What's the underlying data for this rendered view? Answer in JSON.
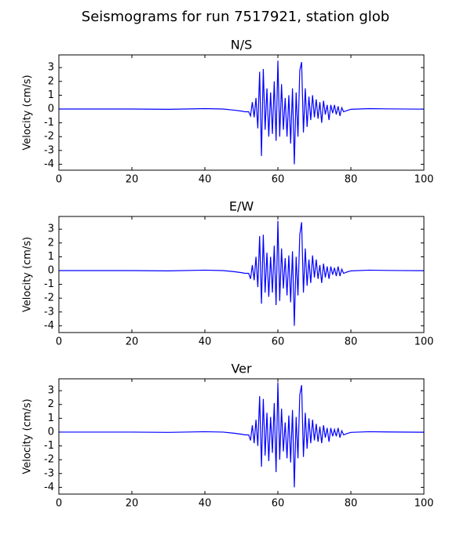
{
  "title": "Seismograms for run 7517921, station glob",
  "chart_data": [
    {
      "type": "line",
      "title": "N/S",
      "ylabel": "Velocity (cm/s)",
      "xlim": [
        0,
        100
      ],
      "ylim": [
        -4.43,
        3.92
      ],
      "xticks": [
        0,
        20,
        40,
        60,
        80,
        100
      ],
      "yticks": [
        -4,
        -3,
        -2,
        -1,
        0,
        1,
        2,
        3
      ],
      "x": [
        0,
        10,
        20,
        30,
        40,
        45,
        48,
        50,
        51,
        52,
        52.5,
        53,
        53.5,
        54,
        54.5,
        55,
        55.5,
        56,
        56.5,
        57,
        57.5,
        58,
        58.5,
        59,
        59.5,
        60,
        60.5,
        61,
        61.5,
        62,
        62.5,
        63,
        63.5,
        64,
        64.5,
        65,
        65.5,
        66,
        66.5,
        67,
        67.5,
        68,
        68.5,
        69,
        69.5,
        70,
        70.5,
        71,
        71.5,
        72,
        72.5,
        73,
        73.5,
        74,
        74.5,
        75,
        75.5,
        76,
        76.5,
        77,
        77.5,
        78,
        79,
        80,
        85,
        90,
        100
      ],
      "series": [
        {
          "name": "N/S",
          "color": "#0000ff",
          "values": [
            0,
            0,
            0,
            -0.02,
            0.03,
            0,
            -0.08,
            -0.15,
            -0.2,
            -0.2,
            -0.5,
            0.5,
            -0.6,
            0.8,
            -1.4,
            2.7,
            -3.4,
            2.9,
            -1.5,
            1.5,
            -2.0,
            1.2,
            -1.8,
            2.0,
            -2.3,
            3.5,
            -2.0,
            1.8,
            -1.5,
            0.8,
            -2.0,
            1.0,
            -2.5,
            1.5,
            -4.0,
            1.2,
            -2.0,
            2.8,
            3.4,
            -1.7,
            1.5,
            -1.3,
            0.9,
            -0.8,
            1.0,
            -0.6,
            0.7,
            -0.7,
            0.5,
            -1.0,
            0.6,
            -0.4,
            0.3,
            -0.8,
            0.3,
            -0.3,
            0.3,
            -0.4,
            0.2,
            -0.5,
            0.1,
            -0.2,
            -0.1,
            -0.02,
            0.03,
            0.01,
            -0.01
          ]
        }
      ]
    },
    {
      "type": "line",
      "title": "E/W",
      "ylabel": "Velocity (cm/s)",
      "xlim": [
        0,
        100
      ],
      "ylim": [
        -4.49,
        3.92
      ],
      "xticks": [
        0,
        20,
        40,
        60,
        80,
        100
      ],
      "yticks": [
        -4,
        -3,
        -2,
        -1,
        0,
        1,
        2,
        3
      ],
      "x": [
        0,
        10,
        20,
        30,
        40,
        45,
        48,
        50,
        51,
        52,
        52.5,
        53,
        53.5,
        54,
        54.5,
        55,
        55.5,
        56,
        56.5,
        57,
        57.5,
        58,
        58.5,
        59,
        59.5,
        60,
        60.5,
        61,
        61.5,
        62,
        62.5,
        63,
        63.5,
        64,
        64.5,
        65,
        65.5,
        66,
        66.5,
        67,
        67.5,
        68,
        68.5,
        69,
        69.5,
        70,
        70.5,
        71,
        71.5,
        72,
        72.5,
        73,
        73.5,
        74,
        74.5,
        75,
        75.5,
        76,
        76.5,
        77,
        77.5,
        78,
        79,
        80,
        85,
        90,
        100
      ],
      "series": [
        {
          "name": "E/W",
          "color": "#0000ff",
          "values": [
            0,
            0,
            0,
            -0.02,
            0.03,
            0,
            -0.08,
            -0.15,
            -0.2,
            -0.2,
            -0.6,
            0.4,
            -0.7,
            1.0,
            -1.2,
            2.5,
            -2.4,
            2.6,
            -1.6,
            1.3,
            -1.9,
            1.0,
            -1.6,
            1.8,
            -2.5,
            3.6,
            -2.2,
            1.6,
            -1.3,
            0.9,
            -1.8,
            1.1,
            -2.3,
            1.4,
            -4.0,
            1.0,
            -1.8,
            2.6,
            3.5,
            -1.6,
            1.6,
            -1.1,
            0.8,
            -0.9,
            1.1,
            -0.5,
            0.8,
            -0.6,
            0.4,
            -0.9,
            0.5,
            -0.5,
            0.3,
            -0.6,
            0.3,
            -0.3,
            0.2,
            -0.4,
            0.3,
            -0.4,
            0.1,
            -0.2,
            -0.1,
            -0.02,
            0.03,
            0.01,
            -0.01
          ]
        }
      ]
    },
    {
      "type": "line",
      "title": "Ver",
      "ylabel": "Velocity (cm/s)",
      "xlim": [
        0,
        100
      ],
      "ylim": [
        -4.49,
        3.86
      ],
      "xticks": [
        0,
        20,
        40,
        60,
        80,
        100
      ],
      "yticks": [
        -4,
        -3,
        -2,
        -1,
        0,
        1,
        2,
        3
      ],
      "x": [
        0,
        10,
        20,
        30,
        40,
        45,
        48,
        50,
        51,
        52,
        52.5,
        53,
        53.5,
        54,
        54.5,
        55,
        55.5,
        56,
        56.5,
        57,
        57.5,
        58,
        58.5,
        59,
        59.5,
        60,
        60.5,
        61,
        61.5,
        62,
        62.5,
        63,
        63.5,
        64,
        64.5,
        65,
        65.5,
        66,
        66.5,
        67,
        67.5,
        68,
        68.5,
        69,
        69.5,
        70,
        70.5,
        71,
        71.5,
        72,
        72.5,
        73,
        73.5,
        74,
        74.5,
        75,
        75.5,
        76,
        76.5,
        77,
        77.5,
        78,
        79,
        80,
        85,
        90,
        100
      ],
      "series": [
        {
          "name": "Ver",
          "color": "#0000ff",
          "values": [
            0,
            0,
            0,
            -0.02,
            0.03,
            0,
            -0.08,
            -0.15,
            -0.2,
            -0.2,
            -0.6,
            0.5,
            -0.8,
            0.9,
            -1.0,
            2.6,
            -2.5,
            2.4,
            -1.7,
            1.4,
            -2.1,
            1.1,
            -1.5,
            2.1,
            -2.9,
            3.6,
            -2.0,
            1.7,
            -1.4,
            0.7,
            -1.9,
            1.2,
            -2.2,
            1.6,
            -4.0,
            1.1,
            -1.9,
            2.7,
            3.4,
            -1.8,
            1.4,
            -1.2,
            1.0,
            -0.8,
            0.9,
            -0.6,
            0.6,
            -0.7,
            0.4,
            -0.8,
            0.5,
            -0.4,
            0.3,
            -0.7,
            0.3,
            -0.3,
            0.2,
            -0.3,
            0.3,
            -0.4,
            0.1,
            -0.2,
            -0.1,
            -0.02,
            0.03,
            0.01,
            -0.01
          ]
        }
      ]
    }
  ]
}
